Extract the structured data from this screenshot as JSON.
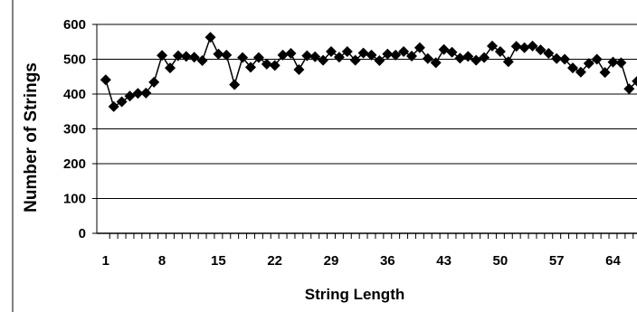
{
  "chart_data": {
    "type": "line",
    "title": "",
    "xlabel": "String Length",
    "ylabel": "Number of Strings",
    "xlim": [
      1,
      67
    ],
    "ylim": [
      0,
      600
    ],
    "xticks": [
      "1",
      "8",
      "15",
      "22",
      "29",
      "36",
      "43",
      "50",
      "57",
      "64"
    ],
    "yticks": [
      "0",
      "100",
      "200",
      "300",
      "400",
      "500",
      "600"
    ],
    "grid": true,
    "legend": "none",
    "marker": "diamond",
    "color": "#000000",
    "series": [
      {
        "x": [
          1,
          2,
          3,
          4,
          5,
          6,
          7,
          8,
          9,
          10,
          11,
          12,
          13,
          14,
          15,
          16,
          17,
          18,
          19,
          20,
          21,
          22,
          23,
          24,
          25,
          26,
          27,
          28,
          29,
          30,
          31,
          32,
          33,
          34,
          35,
          36,
          37,
          38,
          39,
          40,
          41,
          42,
          43,
          44,
          45,
          46,
          47,
          48,
          49,
          50,
          51,
          52,
          53,
          54,
          55,
          56,
          57,
          58,
          59,
          60,
          61,
          62,
          63,
          64,
          65,
          66,
          67
        ],
        "values": [
          441,
          364,
          378,
          394,
          402,
          403,
          434,
          511,
          475,
          510,
          508,
          506,
          496,
          563,
          515,
          512,
          427,
          505,
          477,
          505,
          486,
          482,
          512,
          517,
          470,
          510,
          507,
          497,
          522,
          506,
          522,
          497,
          518,
          512,
          496,
          515,
          512,
          522,
          509,
          533,
          502,
          490,
          528,
          520,
          503,
          508,
          497,
          505,
          538,
          522,
          493,
          537,
          533,
          538,
          527,
          517,
          502,
          500,
          475,
          463,
          488,
          500,
          462,
          492,
          490,
          415,
          437
        ]
      }
    ]
  }
}
